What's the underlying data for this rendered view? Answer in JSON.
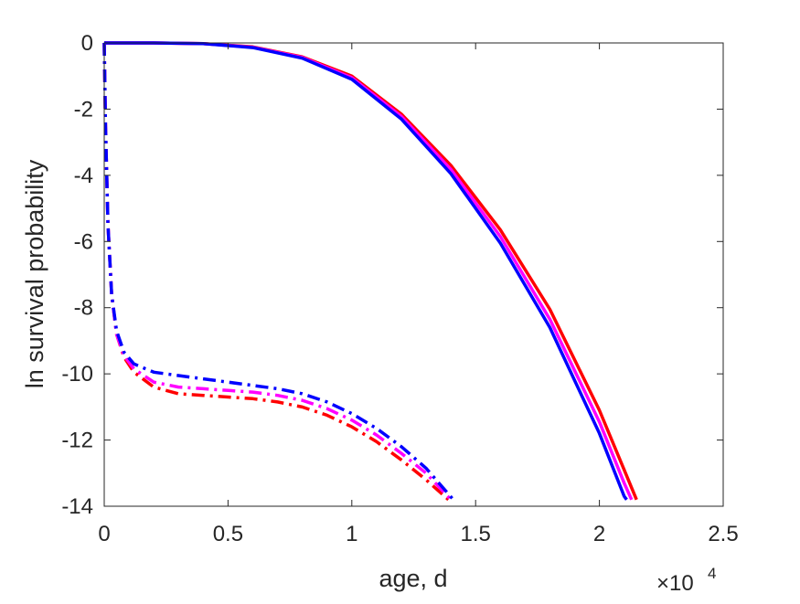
{
  "chart_data": {
    "type": "line",
    "title": "",
    "xlabel": "age, d",
    "ylabel": "ln survival probability",
    "x_exponent_label": "×10",
    "x_exponent_power": "4",
    "xlim": [
      0,
      25000
    ],
    "ylim": [
      -14,
      0
    ],
    "x_ticks": [
      0,
      5000,
      10000,
      15000,
      20000,
      25000
    ],
    "x_tick_labels": [
      "0",
      "0.5",
      "1",
      "1.5",
      "2",
      "2.5"
    ],
    "y_ticks": [
      0,
      -2,
      -4,
      -6,
      -8,
      -10,
      -12,
      -14
    ],
    "y_tick_labels": [
      "0",
      "-2",
      "-4",
      "-6",
      "-8",
      "-10",
      "-12",
      "-14"
    ],
    "grid": false,
    "legend": "none",
    "series": [
      {
        "color": "#ff0000",
        "style": "solid",
        "x": [
          0,
          2000,
          4000,
          6000,
          8000,
          10000,
          12000,
          14000,
          16000,
          18000,
          20000,
          21000,
          21500
        ],
        "y": [
          0,
          0,
          -0.02,
          -0.12,
          -0.42,
          -1.0,
          -2.15,
          -3.7,
          -5.65,
          -8.05,
          -11.1,
          -12.9,
          -13.8
        ]
      },
      {
        "color": "#ff00ff",
        "style": "solid",
        "x": [
          0,
          2000,
          4000,
          6000,
          8000,
          10000,
          12000,
          14000,
          16000,
          18000,
          20000,
          21000,
          21300
        ],
        "y": [
          0,
          0,
          -0.02,
          -0.13,
          -0.44,
          -1.05,
          -2.22,
          -3.82,
          -5.85,
          -8.35,
          -11.45,
          -13.3,
          -13.8
        ]
      },
      {
        "color": "#0000ff",
        "style": "solid",
        "x": [
          0,
          2000,
          4000,
          6000,
          8000,
          10000,
          12000,
          14000,
          16000,
          18000,
          20000,
          21000,
          21100
        ],
        "y": [
          0,
          0,
          -0.02,
          -0.14,
          -0.46,
          -1.1,
          -2.3,
          -3.95,
          -6.05,
          -8.6,
          -11.8,
          -13.7,
          -13.8
        ]
      },
      {
        "color": "#ff0000",
        "style": "dashdot",
        "x": [
          0,
          50,
          150,
          300,
          500,
          800,
          1200,
          2000,
          3000,
          4000,
          5000,
          6000,
          7000,
          8000,
          9000,
          10000,
          11000,
          12000,
          13000,
          13900
        ],
        "y": [
          0,
          -2.5,
          -5.5,
          -7.6,
          -8.8,
          -9.5,
          -9.95,
          -10.4,
          -10.6,
          -10.65,
          -10.7,
          -10.75,
          -10.85,
          -11.0,
          -11.25,
          -11.6,
          -12.05,
          -12.6,
          -13.2,
          -13.8
        ]
      },
      {
        "color": "#ff00ff",
        "style": "dashdot",
        "x": [
          0,
          50,
          150,
          300,
          500,
          800,
          1200,
          2000,
          3000,
          4000,
          5000,
          6000,
          7000,
          8000,
          9000,
          10000,
          11000,
          12000,
          13000,
          14000
        ],
        "y": [
          0,
          -2.5,
          -5.5,
          -7.6,
          -8.8,
          -9.45,
          -9.85,
          -10.25,
          -10.4,
          -10.45,
          -10.5,
          -10.55,
          -10.65,
          -10.8,
          -11.05,
          -11.4,
          -11.85,
          -12.4,
          -13.0,
          -13.8
        ]
      },
      {
        "color": "#0000ff",
        "style": "dashdot",
        "x": [
          0,
          50,
          150,
          300,
          500,
          800,
          1200,
          2000,
          3000,
          4000,
          5000,
          6000,
          7000,
          8000,
          9000,
          10000,
          11000,
          12000,
          13000,
          14100
        ],
        "y": [
          0,
          -2.5,
          -5.5,
          -7.6,
          -8.7,
          -9.35,
          -9.7,
          -9.95,
          -10.05,
          -10.15,
          -10.25,
          -10.35,
          -10.45,
          -10.6,
          -10.85,
          -11.2,
          -11.65,
          -12.2,
          -12.85,
          -13.8
        ]
      }
    ]
  }
}
